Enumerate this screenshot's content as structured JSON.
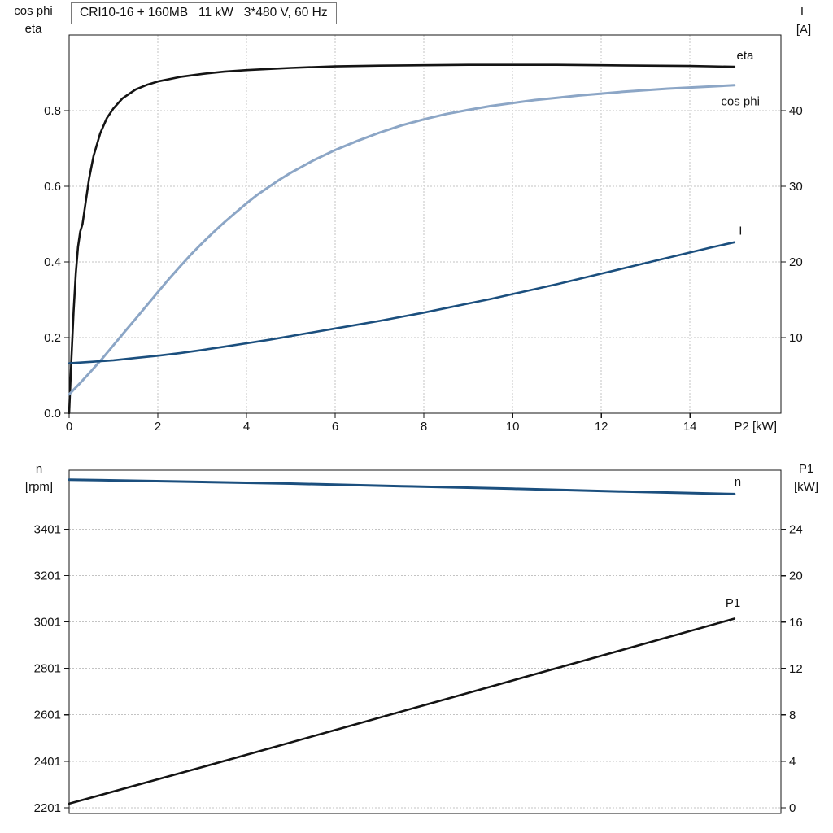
{
  "title_box": {
    "text": "CRI10-16 + 160MB   11 kW   3*480 V, 60 Hz"
  },
  "axis_corners": {
    "top_left": [
      "cos phi",
      "eta"
    ],
    "top_right": [
      "I",
      "[A]"
    ],
    "bottom_left": [
      "n",
      "[rpm]"
    ],
    "bottom_right": [
      "P1",
      "[kW]"
    ]
  },
  "colors": {
    "black_curve": "#141414",
    "light_blue_curve": "#8ca6c6",
    "dark_blue_curve": "#1b4f7e",
    "grid": "#c3c3c3",
    "text": "#141414"
  },
  "chart_data": [
    {
      "type": "line",
      "title": "CRI10-16 + 160MB   11 kW   3*480 V, 60 Hz",
      "grid_vertical": true,
      "x": {
        "min": 0,
        "max": 16.05,
        "label": "P2 [kW]",
        "ticks": [
          {
            "v": 0,
            "t": "0"
          },
          {
            "v": 2,
            "t": "2"
          },
          {
            "v": 4,
            "t": "4"
          },
          {
            "v": 6,
            "t": "6"
          },
          {
            "v": 8,
            "t": "8"
          },
          {
            "v": 10,
            "t": "10"
          },
          {
            "v": 12,
            "t": "12"
          },
          {
            "v": 14,
            "t": "14"
          }
        ]
      },
      "y_left": {
        "label": "cos phi / eta",
        "min": 0,
        "max": 1.0,
        "ticks": [
          {
            "v": 0.0,
            "t": "0.0"
          },
          {
            "v": 0.2,
            "t": "0.2"
          },
          {
            "v": 0.4,
            "t": "0.4"
          },
          {
            "v": 0.6,
            "t": "0.6"
          },
          {
            "v": 0.8,
            "t": "0.8"
          }
        ]
      },
      "y_right": {
        "label": "I [A]",
        "min": 0,
        "max": 50,
        "ticks": [
          {
            "v": 10,
            "t": "10"
          },
          {
            "v": 20,
            "t": "20"
          },
          {
            "v": 30,
            "t": "30"
          },
          {
            "v": 40,
            "t": "40"
          }
        ]
      },
      "series": [
        {
          "id": "eta",
          "name": "eta",
          "axis": "left",
          "color": "#141414",
          "width": 2.6,
          "label": {
            "x": 15.05,
            "y": 0.935
          },
          "points": [
            [
              0,
              0
            ],
            [
              0.05,
              0.14
            ],
            [
              0.1,
              0.27
            ],
            [
              0.15,
              0.37
            ],
            [
              0.2,
              0.44
            ],
            [
              0.25,
              0.48
            ],
            [
              0.3,
              0.5
            ],
            [
              0.35,
              0.54
            ],
            [
              0.45,
              0.62
            ],
            [
              0.55,
              0.68
            ],
            [
              0.7,
              0.74
            ],
            [
              0.85,
              0.78
            ],
            [
              1,
              0.806
            ],
            [
              1.2,
              0.832
            ],
            [
              1.5,
              0.856
            ],
            [
              1.75,
              0.868
            ],
            [
              2,
              0.877
            ],
            [
              2.5,
              0.889
            ],
            [
              3,
              0.897
            ],
            [
              3.5,
              0.903
            ],
            [
              4,
              0.907
            ],
            [
              4.5,
              0.91
            ],
            [
              5,
              0.913
            ],
            [
              5.5,
              0.915
            ],
            [
              6,
              0.917
            ],
            [
              7,
              0.919
            ],
            [
              8,
              0.92
            ],
            [
              9,
              0.921
            ],
            [
              10,
              0.921
            ],
            [
              11,
              0.921
            ],
            [
              12,
              0.92
            ],
            [
              13,
              0.919
            ],
            [
              14,
              0.918
            ],
            [
              15,
              0.916
            ]
          ]
        },
        {
          "id": "cos-phi",
          "name": "cos phi",
          "axis": "left",
          "color": "#8ca6c6",
          "width": 3,
          "label": {
            "x": 14.7,
            "y": 0.814
          },
          "points": [
            [
              0,
              0.05
            ],
            [
              0.25,
              0.08
            ],
            [
              0.5,
              0.112
            ],
            [
              0.75,
              0.145
            ],
            [
              1,
              0.18
            ],
            [
              1.25,
              0.215
            ],
            [
              1.5,
              0.25
            ],
            [
              1.75,
              0.285
            ],
            [
              2,
              0.32
            ],
            [
              2.25,
              0.355
            ],
            [
              2.5,
              0.388
            ],
            [
              2.75,
              0.42
            ],
            [
              3,
              0.45
            ],
            [
              3.25,
              0.478
            ],
            [
              3.5,
              0.505
            ],
            [
              3.75,
              0.53
            ],
            [
              4,
              0.555
            ],
            [
              4.25,
              0.578
            ],
            [
              4.5,
              0.598
            ],
            [
              4.75,
              0.618
            ],
            [
              5,
              0.636
            ],
            [
              5.5,
              0.668
            ],
            [
              6,
              0.696
            ],
            [
              6.5,
              0.72
            ],
            [
              7,
              0.742
            ],
            [
              7.5,
              0.761
            ],
            [
              8,
              0.777
            ],
            [
              8.5,
              0.791
            ],
            [
              9,
              0.802
            ],
            [
              9.5,
              0.812
            ],
            [
              10,
              0.82
            ],
            [
              10.5,
              0.828
            ],
            [
              11,
              0.834
            ],
            [
              11.5,
              0.84
            ],
            [
              12,
              0.845
            ],
            [
              12.5,
              0.85
            ],
            [
              13,
              0.854
            ],
            [
              13.5,
              0.858
            ],
            [
              14,
              0.861
            ],
            [
              14.5,
              0.864
            ],
            [
              15,
              0.867
            ]
          ]
        },
        {
          "id": "I",
          "name": "I",
          "axis": "right",
          "color": "#1b4f7e",
          "width": 2.6,
          "label": {
            "x": 15.1,
            "y": 23.6
          },
          "points": [
            [
              0,
              6.6
            ],
            [
              0.5,
              6.8
            ],
            [
              1,
              7.0
            ],
            [
              1.5,
              7.3
            ],
            [
              2,
              7.6
            ],
            [
              2.5,
              7.95
            ],
            [
              3,
              8.35
            ],
            [
              3.5,
              8.8
            ],
            [
              4,
              9.25
            ],
            [
              4.5,
              9.7
            ],
            [
              5,
              10.2
            ],
            [
              5.5,
              10.7
            ],
            [
              6,
              11.2
            ],
            [
              6.5,
              11.7
            ],
            [
              7,
              12.2
            ],
            [
              7.5,
              12.75
            ],
            [
              8,
              13.3
            ],
            [
              8.5,
              13.9
            ],
            [
              9,
              14.5
            ],
            [
              9.5,
              15.1
            ],
            [
              10,
              15.75
            ],
            [
              10.5,
              16.4
            ],
            [
              11,
              17.05
            ],
            [
              11.5,
              17.75
            ],
            [
              12,
              18.45
            ],
            [
              12.5,
              19.15
            ],
            [
              13,
              19.85
            ],
            [
              13.5,
              20.55
            ],
            [
              14,
              21.25
            ],
            [
              14.5,
              21.95
            ],
            [
              15,
              22.6
            ]
          ]
        }
      ]
    },
    {
      "type": "line",
      "title": "",
      "grid_vertical": false,
      "x": {
        "min": 0,
        "max": 16.05,
        "label": "",
        "ticks": []
      },
      "y_left": {
        "label": "n [rpm]",
        "min": 2176,
        "max": 3655,
        "ticks": [
          {
            "v": 2201,
            "t": "2201"
          },
          {
            "v": 2401,
            "t": "2401"
          },
          {
            "v": 2601,
            "t": "2601"
          },
          {
            "v": 2801,
            "t": "2801"
          },
          {
            "v": 3001,
            "t": "3001"
          },
          {
            "v": 3201,
            "t": "3201"
          },
          {
            "v": 3401,
            "t": "3401"
          }
        ]
      },
      "y_right": {
        "label": "P1 [kW]",
        "min": -0.5,
        "max": 29.1,
        "ticks": [
          {
            "v": 0,
            "t": "0"
          },
          {
            "v": 4,
            "t": "4"
          },
          {
            "v": 8,
            "t": "8"
          },
          {
            "v": 12,
            "t": "12"
          },
          {
            "v": 16,
            "t": "16"
          },
          {
            "v": 20,
            "t": "20"
          },
          {
            "v": 24,
            "t": "24"
          }
        ]
      },
      "series": [
        {
          "id": "n",
          "name": "n",
          "axis": "left",
          "color": "#1b4f7e",
          "width": 3,
          "label": {
            "x": 15.0,
            "y": 3588
          },
          "points": [
            [
              0,
              3614
            ],
            [
              2.5,
              3606
            ],
            [
              5,
              3597
            ],
            [
              7.5,
              3586
            ],
            [
              10,
              3575
            ],
            [
              12.5,
              3563
            ],
            [
              15,
              3552
            ]
          ]
        },
        {
          "id": "P1",
          "name": "P1",
          "axis": "right",
          "color": "#141414",
          "width": 2.6,
          "label": {
            "x": 14.8,
            "y": 17.3
          },
          "points": [
            [
              0,
              0.35
            ],
            [
              3,
              3.5
            ],
            [
              6,
              6.7
            ],
            [
              9,
              9.9
            ],
            [
              12,
              13.1
            ],
            [
              15,
              16.3
            ]
          ]
        }
      ]
    }
  ]
}
